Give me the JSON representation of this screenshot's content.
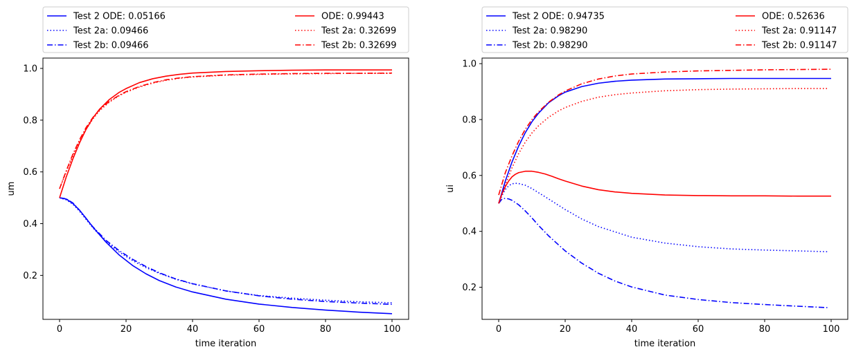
{
  "colors": {
    "blue": "#0000ff",
    "red": "#ff0000",
    "frame": "#000000",
    "legend_border": "#cccccc"
  },
  "chart_data": [
    {
      "type": "line",
      "xlabel": "time iteration",
      "ylabel": "um",
      "xlim": [
        -5,
        105
      ],
      "ylim": [
        0.03,
        1.04
      ],
      "xticks": [
        0,
        20,
        40,
        60,
        80,
        100
      ],
      "yticks": [
        0.2,
        0.4,
        0.6,
        0.8,
        1.0
      ],
      "xtick_labels": [
        "0",
        "20",
        "40",
        "60",
        "80",
        "100"
      ],
      "ytick_labels": [
        "0.2",
        "0.4",
        "0.6",
        "0.8",
        "1.0"
      ],
      "legend_position": "above",
      "series": [
        {
          "name": "Test 2 ODE: 0.05166",
          "color": "blue",
          "style": "solid",
          "x": [
            0,
            2,
            4,
            6,
            8,
            10,
            14,
            18,
            22,
            26,
            30,
            35,
            40,
            50,
            60,
            70,
            80,
            90,
            100
          ],
          "y": [
            0.5,
            0.495,
            0.478,
            0.452,
            0.42,
            0.387,
            0.328,
            0.278,
            0.238,
            0.206,
            0.18,
            0.155,
            0.136,
            0.108,
            0.089,
            0.076,
            0.066,
            0.058,
            0.052
          ]
        },
        {
          "name": "Test 2a: 0.09466",
          "color": "blue",
          "style": "dotted",
          "x": [
            0,
            2,
            4,
            6,
            8,
            10,
            14,
            18,
            22,
            26,
            30,
            35,
            40,
            50,
            60,
            70,
            80,
            90,
            100
          ],
          "y": [
            0.5,
            0.492,
            0.475,
            0.448,
            0.416,
            0.384,
            0.33,
            0.29,
            0.257,
            0.23,
            0.208,
            0.185,
            0.167,
            0.14,
            0.122,
            0.112,
            0.104,
            0.098,
            0.094
          ]
        },
        {
          "name": "Test 2b: 0.09466",
          "color": "blue",
          "style": "dashdot",
          "x": [
            0,
            2,
            4,
            6,
            8,
            10,
            14,
            18,
            22,
            26,
            30,
            35,
            40,
            50,
            60,
            70,
            80,
            90,
            100
          ],
          "y": [
            0.5,
            0.496,
            0.48,
            0.452,
            0.42,
            0.388,
            0.335,
            0.295,
            0.262,
            0.234,
            0.21,
            0.186,
            0.168,
            0.14,
            0.121,
            0.108,
            0.099,
            0.093,
            0.088
          ]
        },
        {
          "name": "ODE: 0.99443",
          "color": "red",
          "style": "solid",
          "x": [
            0,
            2,
            4,
            6,
            8,
            10,
            12,
            15,
            18,
            20,
            24,
            28,
            32,
            36,
            40,
            50,
            60,
            70,
            80,
            90,
            100
          ],
          "y": [
            0.5,
            0.58,
            0.65,
            0.712,
            0.765,
            0.808,
            0.842,
            0.88,
            0.908,
            0.922,
            0.945,
            0.96,
            0.97,
            0.977,
            0.982,
            0.988,
            0.991,
            0.993,
            0.994,
            0.994,
            0.994
          ]
        },
        {
          "name": "Test 2a: 0.32699",
          "color": "red",
          "style": "dotted",
          "x": [
            0,
            2,
            4,
            6,
            8,
            10,
            12,
            15,
            18,
            20,
            24,
            28,
            32,
            36,
            40,
            50,
            60,
            70,
            80,
            90,
            100
          ],
          "y": [
            0.535,
            0.6,
            0.662,
            0.718,
            0.765,
            0.804,
            0.836,
            0.87,
            0.895,
            0.908,
            0.928,
            0.943,
            0.954,
            0.962,
            0.967,
            0.974,
            0.977,
            0.979,
            0.98,
            0.981,
            0.981
          ]
        },
        {
          "name": "Test 2b: 0.32699",
          "color": "red",
          "style": "dashdot",
          "x": [
            0,
            2,
            4,
            6,
            8,
            10,
            12,
            15,
            18,
            20,
            24,
            28,
            32,
            36,
            40,
            50,
            60,
            70,
            80,
            90,
            100
          ],
          "y": [
            0.535,
            0.604,
            0.668,
            0.724,
            0.772,
            0.81,
            0.84,
            0.873,
            0.897,
            0.91,
            0.93,
            0.945,
            0.956,
            0.963,
            0.968,
            0.975,
            0.978,
            0.98,
            0.981,
            0.981,
            0.982
          ]
        }
      ]
    },
    {
      "type": "line",
      "xlabel": "time iteration",
      "ylabel": "ui",
      "xlim": [
        -5,
        105
      ],
      "ylim": [
        0.085,
        1.02
      ],
      "xticks": [
        0,
        20,
        40,
        60,
        80,
        100
      ],
      "yticks": [
        0.2,
        0.4,
        0.6,
        0.8,
        1.0
      ],
      "xtick_labels": [
        "0",
        "20",
        "40",
        "60",
        "80",
        "100"
      ],
      "ytick_labels": [
        "0.2",
        "0.4",
        "0.6",
        "0.8",
        "1.0"
      ],
      "legend_position": "above",
      "series": [
        {
          "name": "Test 2 ODE: 0.94735",
          "color": "blue",
          "style": "solid",
          "x": [
            0,
            2,
            4,
            6,
            8,
            10,
            12,
            15,
            18,
            20,
            25,
            30,
            35,
            40,
            50,
            60,
            70,
            80,
            90,
            100
          ],
          "y": [
            0.5,
            0.58,
            0.648,
            0.705,
            0.753,
            0.792,
            0.823,
            0.86,
            0.885,
            0.898,
            0.918,
            0.93,
            0.937,
            0.941,
            0.945,
            0.946,
            0.947,
            0.947,
            0.947,
            0.947
          ]
        },
        {
          "name": "Test 2a: 0.98290",
          "color": "blue",
          "style": "dotted",
          "x": [
            0,
            1,
            2,
            3,
            4,
            5,
            6,
            8,
            10,
            12,
            15,
            20,
            25,
            30,
            40,
            50,
            60,
            70,
            80,
            90,
            99
          ],
          "y": [
            0.5,
            0.528,
            0.55,
            0.563,
            0.57,
            0.572,
            0.571,
            0.565,
            0.553,
            0.538,
            0.516,
            0.478,
            0.444,
            0.417,
            0.379,
            0.358,
            0.345,
            0.337,
            0.333,
            0.33,
            0.327
          ]
        },
        {
          "name": "Test 2b: 0.98290",
          "color": "blue",
          "style": "dashdot",
          "x": [
            0,
            1,
            2,
            3,
            4,
            6,
            8,
            10,
            12,
            15,
            20,
            25,
            30,
            35,
            40,
            50,
            60,
            70,
            80,
            90,
            99
          ],
          "y": [
            0.5,
            0.516,
            0.518,
            0.516,
            0.511,
            0.495,
            0.473,
            0.448,
            0.421,
            0.384,
            0.33,
            0.286,
            0.25,
            0.222,
            0.201,
            0.172,
            0.156,
            0.145,
            0.138,
            0.132,
            0.127
          ]
        },
        {
          "name": "ODE: 0.52636",
          "color": "red",
          "style": "solid",
          "x": [
            0,
            1,
            2,
            3,
            4,
            5,
            6,
            8,
            10,
            12,
            14,
            16,
            18,
            20,
            25,
            30,
            35,
            40,
            50,
            60,
            70,
            80,
            90,
            100
          ],
          "y": [
            0.5,
            0.535,
            0.56,
            0.58,
            0.595,
            0.604,
            0.61,
            0.615,
            0.615,
            0.611,
            0.605,
            0.597,
            0.588,
            0.58,
            0.562,
            0.549,
            0.541,
            0.536,
            0.53,
            0.528,
            0.527,
            0.527,
            0.526,
            0.526
          ]
        },
        {
          "name": "Test 2a: 0.91147",
          "color": "red",
          "style": "dotted",
          "x": [
            0,
            2,
            4,
            6,
            8,
            10,
            12,
            15,
            18,
            20,
            25,
            30,
            35,
            40,
            50,
            60,
            70,
            80,
            90,
            99
          ],
          "y": [
            0.5,
            0.566,
            0.627,
            0.678,
            0.719,
            0.752,
            0.778,
            0.808,
            0.831,
            0.843,
            0.865,
            0.88,
            0.889,
            0.895,
            0.903,
            0.907,
            0.909,
            0.91,
            0.911,
            0.911
          ]
        },
        {
          "name": "Test 2b: 0.91147",
          "color": "red",
          "style": "dashdot",
          "x": [
            0,
            2,
            4,
            6,
            8,
            10,
            12,
            15,
            18,
            20,
            25,
            30,
            35,
            40,
            50,
            60,
            70,
            80,
            90,
            100
          ],
          "y": [
            0.53,
            0.61,
            0.67,
            0.722,
            0.765,
            0.8,
            0.828,
            0.862,
            0.888,
            0.902,
            0.928,
            0.945,
            0.956,
            0.963,
            0.97,
            0.974,
            0.976,
            0.978,
            0.979,
            0.98
          ]
        }
      ]
    }
  ]
}
